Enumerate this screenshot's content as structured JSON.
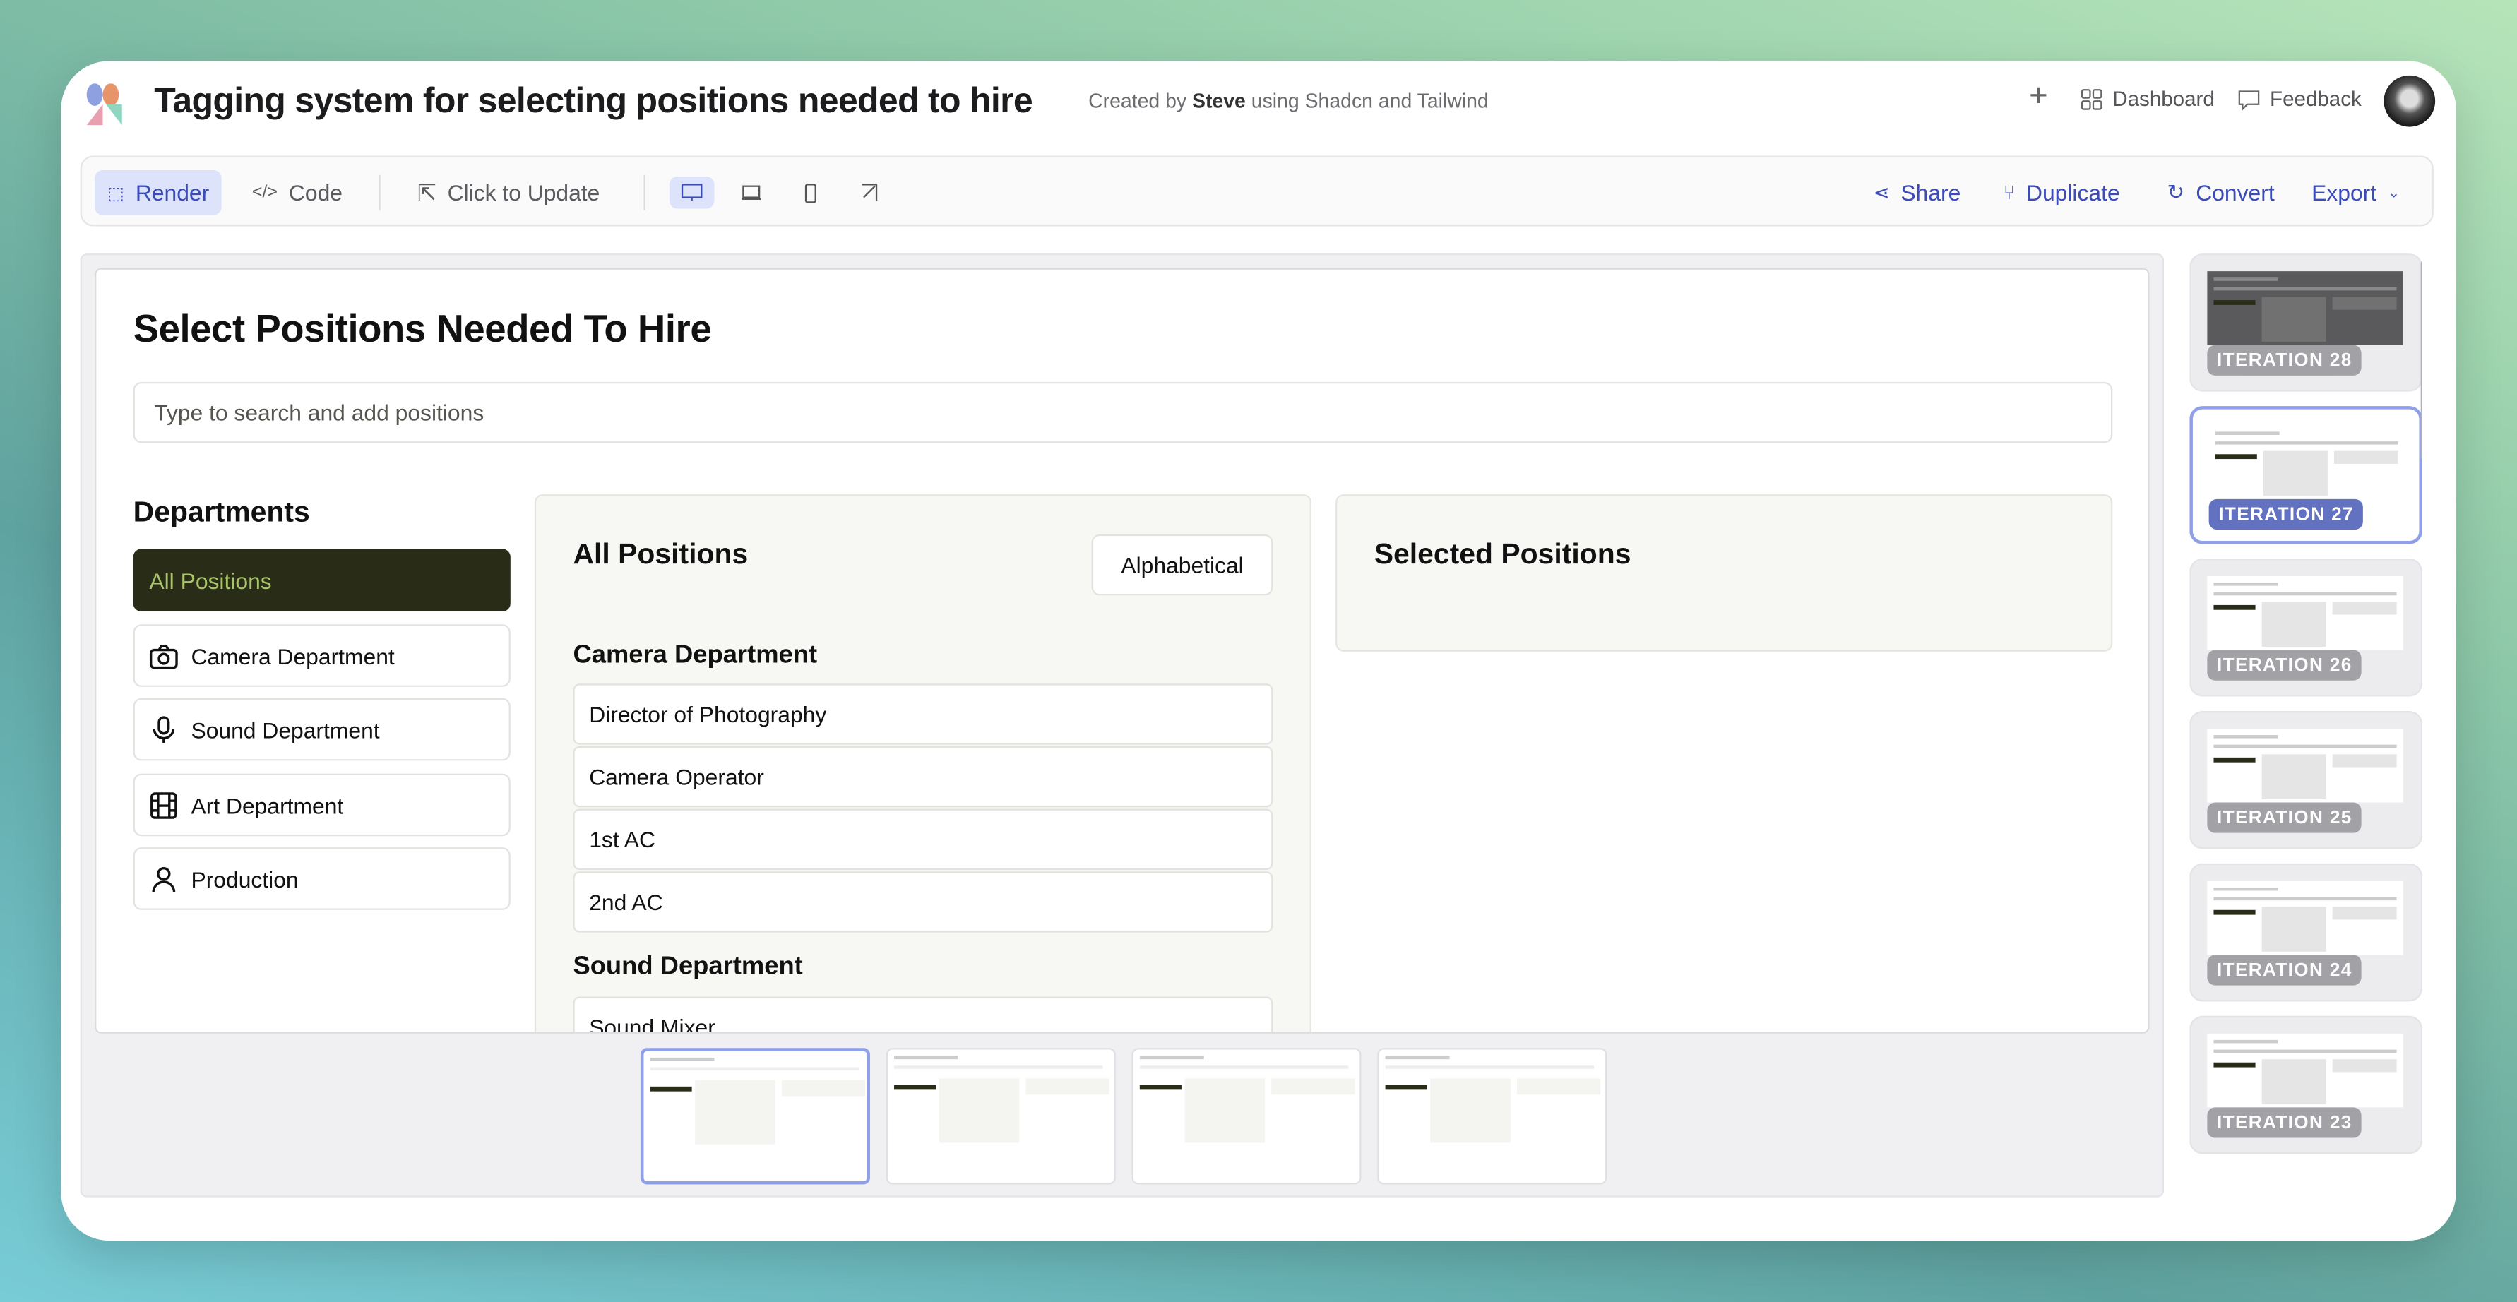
{
  "header": {
    "title": "Tagging system for selecting positions needed to hire",
    "created_by_prefix": "Created by",
    "author": "Steve",
    "created_by_suffix": "using Shadcn and Tailwind",
    "dashboard_label": "Dashboard",
    "feedback_label": "Feedback"
  },
  "toolbar": {
    "render_label": "Render",
    "code_label": "Code",
    "click_to_update_label": "Click to Update",
    "share_label": "Share",
    "duplicate_label": "Duplicate",
    "convert_label": "Convert",
    "export_label": "Export",
    "active_device": "desktop"
  },
  "preview": {
    "heading": "Select Positions Needed To Hire",
    "search_placeholder": "Type to search and add positions",
    "departments_heading": "Departments",
    "departments": [
      {
        "label": "All Positions",
        "icon": "none",
        "selected": true
      },
      {
        "label": "Camera Department",
        "icon": "camera-icon"
      },
      {
        "label": "Sound Department",
        "icon": "microphone-icon"
      },
      {
        "label": "Art Department",
        "icon": "film-icon"
      },
      {
        "label": "Production",
        "icon": "user-icon"
      }
    ],
    "all_positions_heading": "All Positions",
    "sort_label": "Alphabetical",
    "sections": [
      {
        "title": "Camera Department",
        "positions": [
          "Director of Photography",
          "Camera Operator",
          "1st AC",
          "2nd AC"
        ]
      },
      {
        "title": "Sound Department",
        "positions": [
          "Sound Mixer"
        ]
      }
    ],
    "selected_heading": "Selected Positions"
  },
  "iterations": [
    "ITERATION 28",
    "ITERATION 27",
    "ITERATION 26",
    "ITERATION 25",
    "ITERATION 24",
    "ITERATION 23"
  ],
  "selected_iteration": "ITERATION 27",
  "colors": {
    "accent": "#3b4cb8",
    "selected_dept_bg": "#292d18",
    "selected_dept_text": "#a9c46a",
    "iteration_active": "#6272c0"
  }
}
